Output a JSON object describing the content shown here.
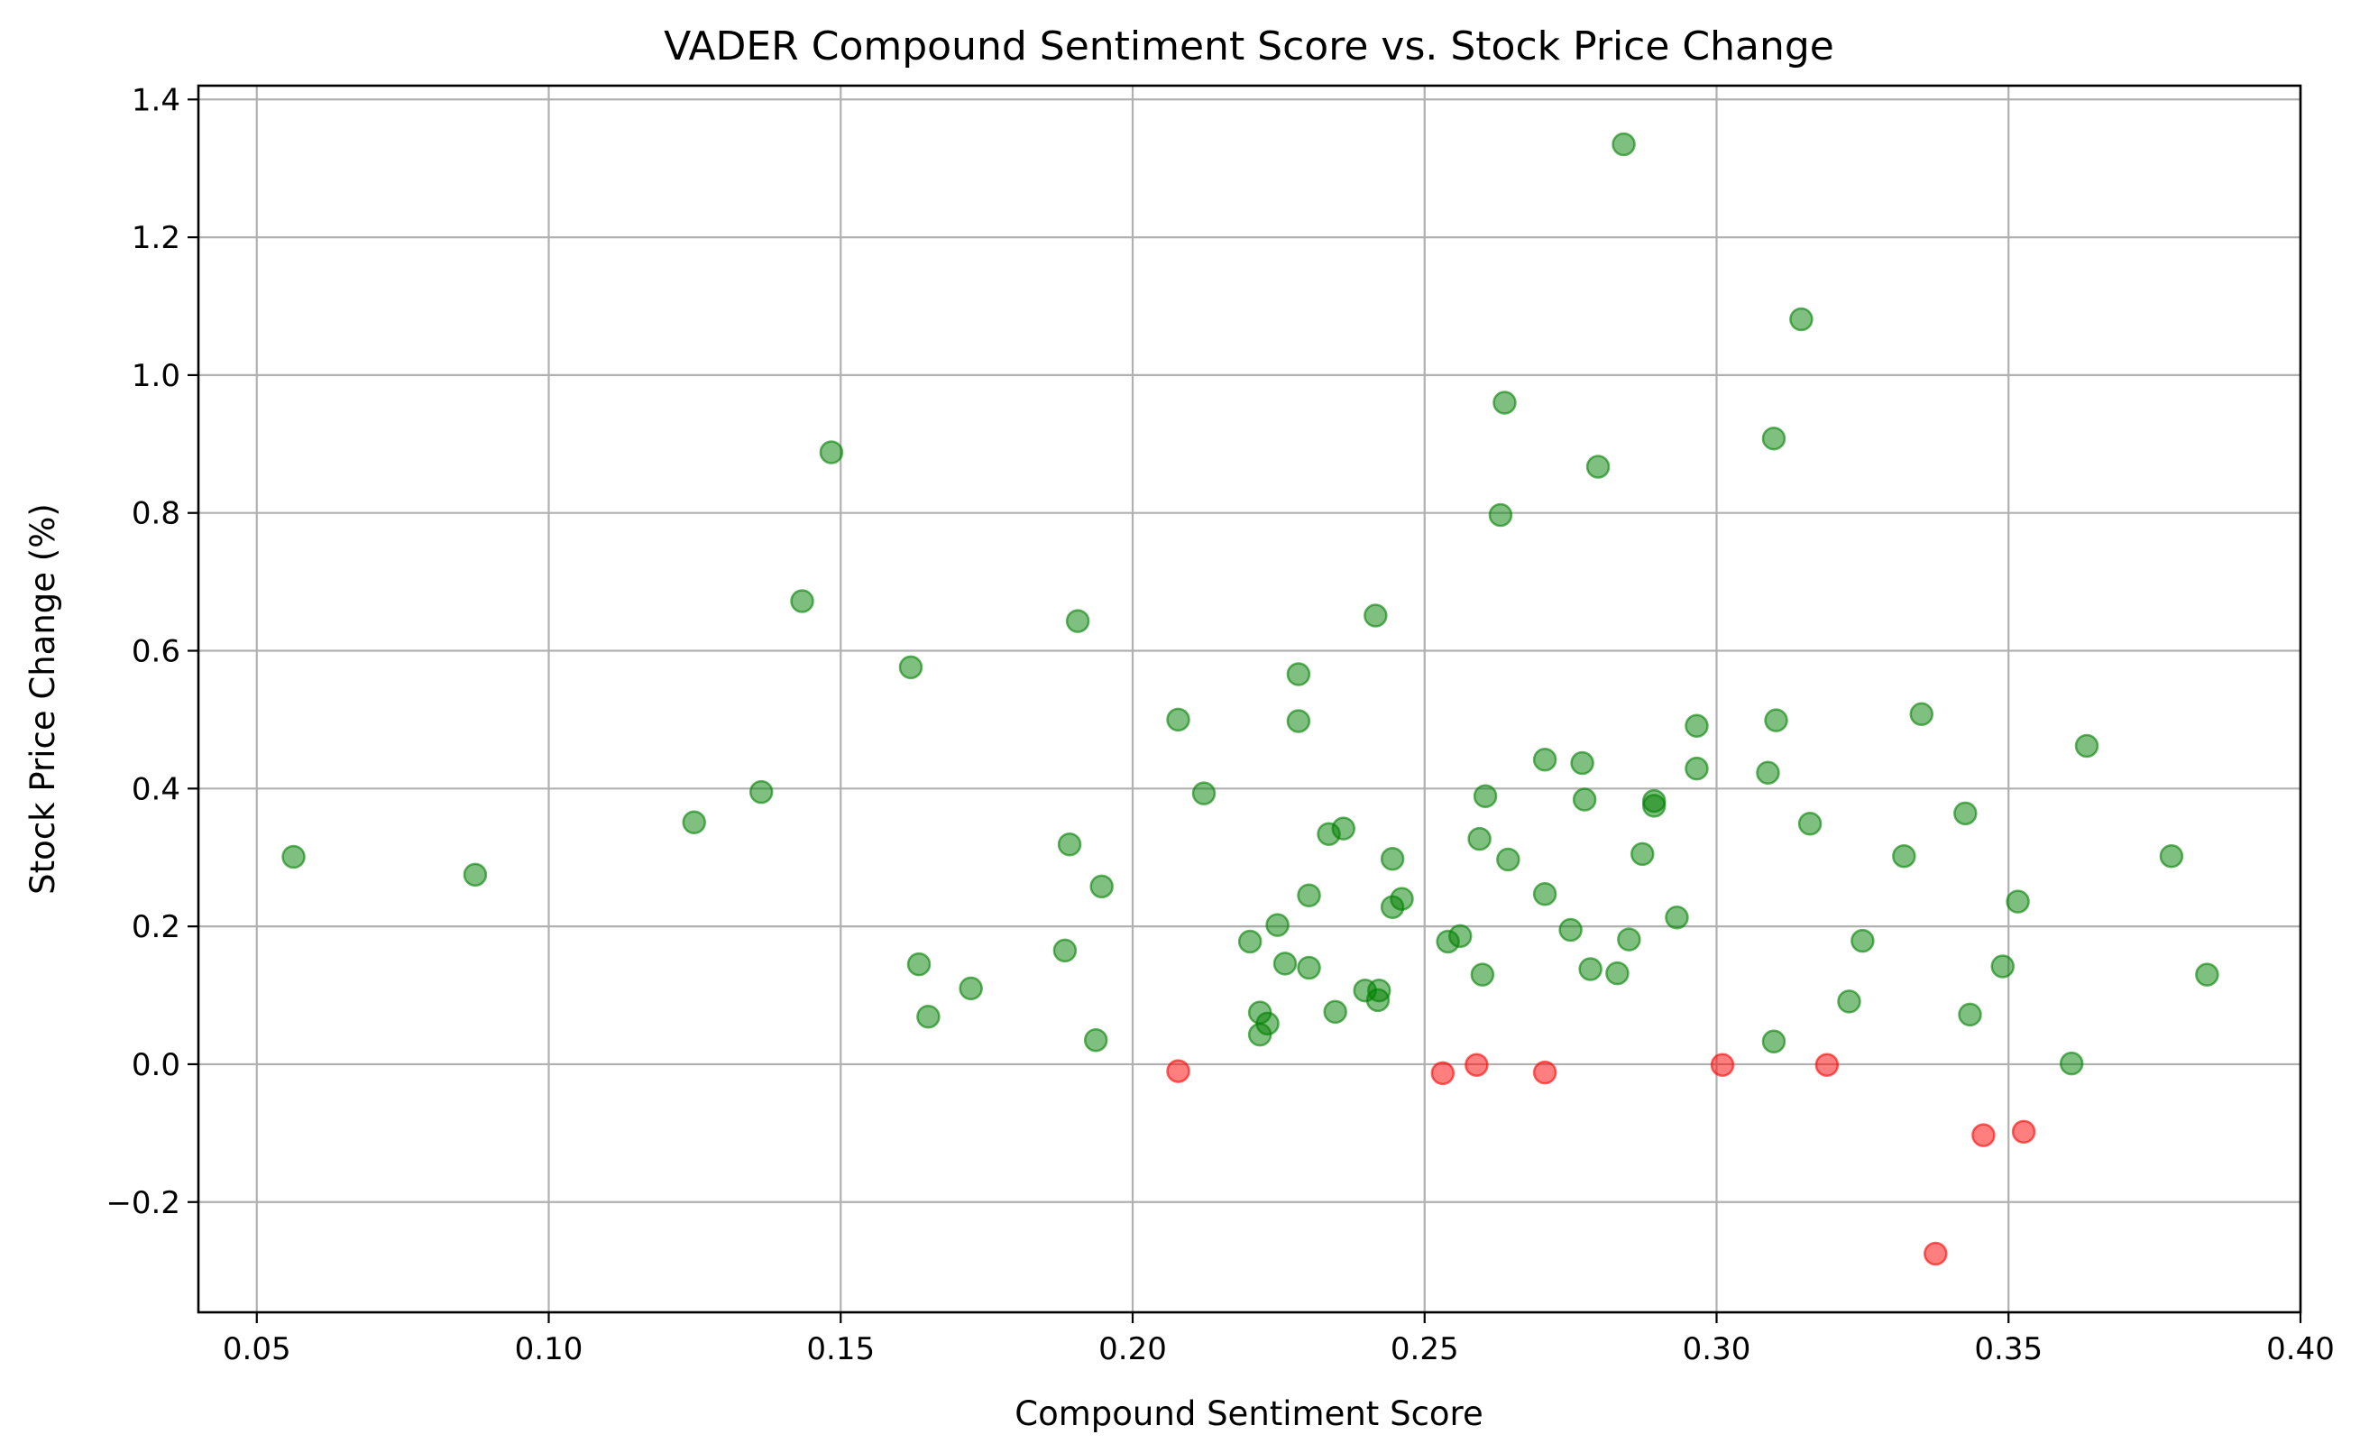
{
  "chart_data": {
    "type": "scatter",
    "title": "VADER Compound Sentiment Score vs. Stock Price Change",
    "xlabel": "Compound Sentiment Score",
    "ylabel": "Stock Price Change (%)",
    "xlim": [
      0.04,
      0.4
    ],
    "ylim": [
      -0.36,
      1.42
    ],
    "xticks": [
      0.05,
      0.1,
      0.15,
      0.2,
      0.25,
      0.3,
      0.35,
      0.4
    ],
    "xtick_labels": [
      "0.05",
      "0.10",
      "0.15",
      "0.20",
      "0.25",
      "0.30",
      "0.35",
      "0.40"
    ],
    "yticks": [
      -0.2,
      0.0,
      0.2,
      0.4,
      0.6,
      0.8,
      1.0,
      1.2,
      1.4
    ],
    "ytick_labels": [
      "−0.2",
      "0.0",
      "0.2",
      "0.4",
      "0.6",
      "0.8",
      "1.0",
      "1.2",
      "1.4"
    ],
    "grid": true,
    "colors": {
      "positive": "#008000",
      "negative": "#ff0000"
    },
    "points": [
      {
        "x": 0.0563,
        "y": 0.301
      },
      {
        "x": 0.0874,
        "y": 0.275
      },
      {
        "x": 0.1249,
        "y": 0.351
      },
      {
        "x": 0.1364,
        "y": 0.395
      },
      {
        "x": 0.1434,
        "y": 0.672
      },
      {
        "x": 0.1484,
        "y": 0.888
      },
      {
        "x": 0.162,
        "y": 0.576
      },
      {
        "x": 0.1634,
        "y": 0.145
      },
      {
        "x": 0.165,
        "y": 0.069
      },
      {
        "x": 0.1723,
        "y": 0.11
      },
      {
        "x": 0.1884,
        "y": 0.165
      },
      {
        "x": 0.1892,
        "y": 0.319
      },
      {
        "x": 0.1906,
        "y": 0.643
      },
      {
        "x": 0.1937,
        "y": 0.035
      },
      {
        "x": 0.1947,
        "y": 0.258
      },
      {
        "x": 0.2078,
        "y": 0.5
      },
      {
        "x": 0.2078,
        "y": -0.01
      },
      {
        "x": 0.2122,
        "y": 0.393
      },
      {
        "x": 0.2201,
        "y": 0.178
      },
      {
        "x": 0.2218,
        "y": 0.075
      },
      {
        "x": 0.2218,
        "y": 0.043
      },
      {
        "x": 0.2231,
        "y": 0.059
      },
      {
        "x": 0.2248,
        "y": 0.202
      },
      {
        "x": 0.2261,
        "y": 0.146
      },
      {
        "x": 0.2284,
        "y": 0.566
      },
      {
        "x": 0.2284,
        "y": 0.498
      },
      {
        "x": 0.2302,
        "y": 0.14
      },
      {
        "x": 0.2302,
        "y": 0.245
      },
      {
        "x": 0.2336,
        "y": 0.334
      },
      {
        "x": 0.2347,
        "y": 0.076
      },
      {
        "x": 0.2361,
        "y": 0.342
      },
      {
        "x": 0.2398,
        "y": 0.107
      },
      {
        "x": 0.2416,
        "y": 0.651
      },
      {
        "x": 0.242,
        "y": 0.093
      },
      {
        "x": 0.2422,
        "y": 0.107
      },
      {
        "x": 0.2445,
        "y": 0.298
      },
      {
        "x": 0.2445,
        "y": 0.228
      },
      {
        "x": 0.2461,
        "y": 0.24
      },
      {
        "x": 0.2531,
        "y": -0.013
      },
      {
        "x": 0.254,
        "y": 0.178
      },
      {
        "x": 0.2561,
        "y": 0.186
      },
      {
        "x": 0.2589,
        "y": -0.001
      },
      {
        "x": 0.2594,
        "y": 0.327
      },
      {
        "x": 0.2599,
        "y": 0.13
      },
      {
        "x": 0.2604,
        "y": 0.389
      },
      {
        "x": 0.263,
        "y": 0.797
      },
      {
        "x": 0.2637,
        "y": 0.96
      },
      {
        "x": 0.2643,
        "y": 0.297
      },
      {
        "x": 0.2706,
        "y": 0.442
      },
      {
        "x": 0.2706,
        "y": 0.247
      },
      {
        "x": 0.2706,
        "y": -0.012
      },
      {
        "x": 0.275,
        "y": 0.195
      },
      {
        "x": 0.277,
        "y": 0.437
      },
      {
        "x": 0.2774,
        "y": 0.384
      },
      {
        "x": 0.2784,
        "y": 0.138
      },
      {
        "x": 0.2797,
        "y": 0.867
      },
      {
        "x": 0.283,
        "y": 0.132
      },
      {
        "x": 0.2841,
        "y": 1.335
      },
      {
        "x": 0.285,
        "y": 0.181
      },
      {
        "x": 0.2873,
        "y": 0.305
      },
      {
        "x": 0.2893,
        "y": 0.382
      },
      {
        "x": 0.2893,
        "y": 0.375
      },
      {
        "x": 0.2932,
        "y": 0.213
      },
      {
        "x": 0.2966,
        "y": 0.491
      },
      {
        "x": 0.2966,
        "y": 0.429
      },
      {
        "x": 0.301,
        "y": -0.001
      },
      {
        "x": 0.3088,
        "y": 0.423
      },
      {
        "x": 0.3098,
        "y": 0.908
      },
      {
        "x": 0.3098,
        "y": 0.033
      },
      {
        "x": 0.3102,
        "y": 0.499
      },
      {
        "x": 0.3145,
        "y": 1.081
      },
      {
        "x": 0.316,
        "y": 0.349
      },
      {
        "x": 0.3189,
        "y": -0.001
      },
      {
        "x": 0.3227,
        "y": 0.091
      },
      {
        "x": 0.325,
        "y": 0.179
      },
      {
        "x": 0.3321,
        "y": 0.302
      },
      {
        "x": 0.3351,
        "y": 0.508
      },
      {
        "x": 0.3375,
        "y": -0.275
      },
      {
        "x": 0.3426,
        "y": 0.364
      },
      {
        "x": 0.3434,
        "y": 0.072
      },
      {
        "x": 0.3457,
        "y": -0.103
      },
      {
        "x": 0.349,
        "y": 0.142
      },
      {
        "x": 0.3516,
        "y": 0.236
      },
      {
        "x": 0.3526,
        "y": -0.098
      },
      {
        "x": 0.3608,
        "y": 0.001
      },
      {
        "x": 0.3634,
        "y": 0.462
      },
      {
        "x": 0.3779,
        "y": 0.302
      },
      {
        "x": 0.384,
        "y": 0.13
      }
    ]
  }
}
